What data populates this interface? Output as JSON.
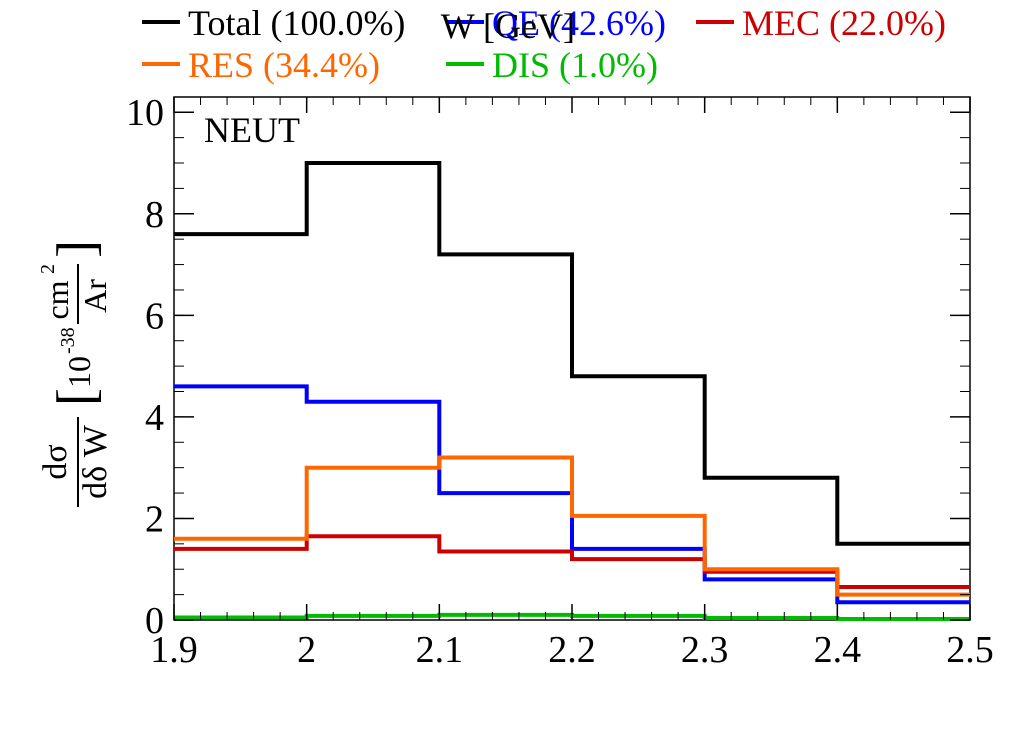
{
  "chart_data": {
    "type": "line",
    "step": true,
    "text_label": "NEUT",
    "xlabel": "W [GeV]",
    "ylabel_numerator": "dσ",
    "ylabel_denominator": "dδ W",
    "ylabel_units_prefix": "10",
    "ylabel_units_exp": "-38",
    "ylabel_units_num": "cm",
    "ylabel_units_num_exp": "2",
    "ylabel_units_den": "Ar",
    "xlim": [
      1.9,
      2.5
    ],
    "ylim": [
      0,
      10.3
    ],
    "grid": false,
    "legend_position": "top",
    "x_ticks": [
      1.9,
      2.0,
      2.1,
      2.2,
      2.3,
      2.4,
      2.5
    ],
    "x_tick_labels": [
      "1.9",
      "2",
      "2.1",
      "2.2",
      "2.3",
      "2.4",
      "2.5"
    ],
    "y_ticks": [
      0,
      2,
      4,
      6,
      8,
      10
    ],
    "y_tick_labels": [
      "0",
      "2",
      "4",
      "6",
      "8",
      "10"
    ],
    "bin_edges": [
      1.9,
      2.0,
      2.1,
      2.2,
      2.3,
      2.4,
      2.5
    ],
    "series": [
      {
        "name": "Total (100.0%)",
        "color": "#000000",
        "values": [
          7.6,
          9.0,
          7.2,
          4.8,
          2.8,
          1.5
        ]
      },
      {
        "name": "QE (42.6%)",
        "color": "#0000ff",
        "values": [
          4.6,
          4.3,
          2.5,
          1.4,
          0.8,
          0.35
        ]
      },
      {
        "name": "MEC (22.0%)",
        "color": "#cc0000",
        "values": [
          1.4,
          1.65,
          1.35,
          1.2,
          0.95,
          0.65
        ]
      },
      {
        "name": "RES (34.4%)",
        "color": "#ff6600",
        "values": [
          1.6,
          3.0,
          3.2,
          2.05,
          1.0,
          0.5
        ]
      },
      {
        "name": "DIS (1.0%)",
        "color": "#00bb00",
        "values": [
          0.05,
          0.08,
          0.1,
          0.08,
          0.04,
          0.02
        ]
      }
    ]
  }
}
